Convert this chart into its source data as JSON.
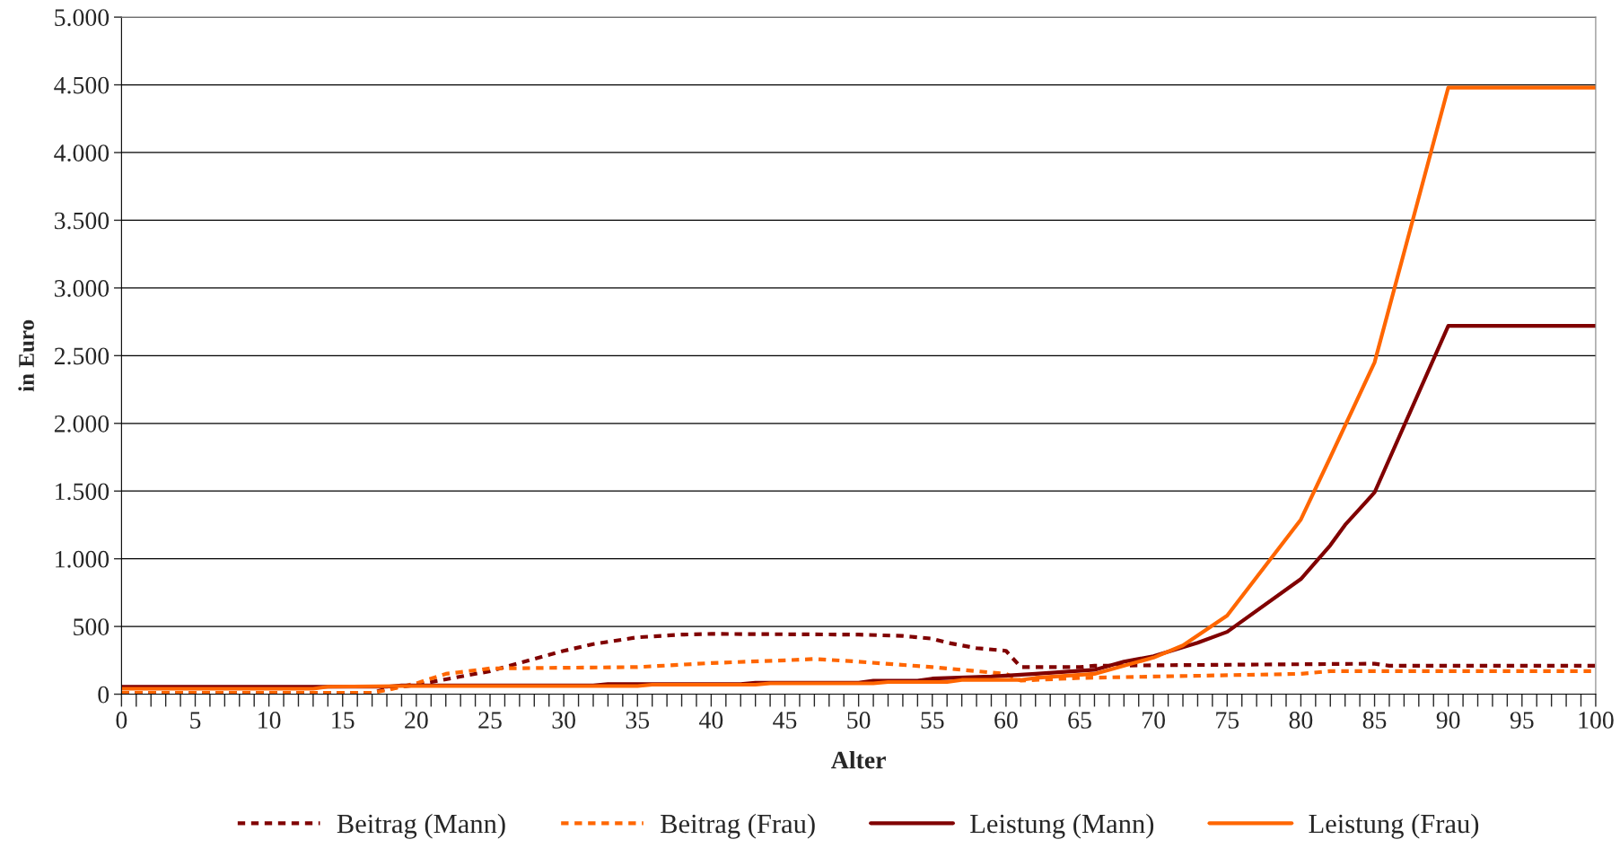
{
  "chart_data": {
    "type": "line",
    "xlabel": "Alter",
    "ylabel": "in Euro",
    "xlim": [
      0,
      100
    ],
    "ylim": [
      0,
      5000
    ],
    "xticks": [
      0,
      {
        "value": 1,
        "label": null
      },
      {
        "value": 2,
        "label": null
      },
      {
        "value": 3,
        "label": null
      },
      {
        "value": 4,
        "label": null
      },
      5,
      {
        "value": 6,
        "label": null
      },
      {
        "value": 7,
        "label": null
      },
      {
        "value": 8,
        "label": null
      },
      {
        "value": 9,
        "label": null
      },
      10,
      {
        "value": 11,
        "label": null
      },
      {
        "value": 12,
        "label": null
      },
      {
        "value": 13,
        "label": null
      },
      {
        "value": 14,
        "label": null
      },
      15,
      {
        "value": 16,
        "label": null
      },
      {
        "value": 17,
        "label": null
      },
      {
        "value": 18,
        "label": null
      },
      {
        "value": 19,
        "label": null
      },
      20,
      {
        "value": 21,
        "label": null
      },
      {
        "value": 22,
        "label": null
      },
      {
        "value": 23,
        "label": null
      },
      {
        "value": 24,
        "label": null
      },
      25,
      {
        "value": 26,
        "label": null
      },
      {
        "value": 27,
        "label": null
      },
      {
        "value": 28,
        "label": null
      },
      {
        "value": 29,
        "label": null
      },
      30,
      {
        "value": 31,
        "label": null
      },
      {
        "value": 32,
        "label": null
      },
      {
        "value": 33,
        "label": null
      },
      {
        "value": 34,
        "label": null
      },
      35,
      {
        "value": 36,
        "label": null
      },
      {
        "value": 37,
        "label": null
      },
      {
        "value": 38,
        "label": null
      },
      {
        "value": 39,
        "label": null
      },
      40,
      {
        "value": 41,
        "label": null
      },
      {
        "value": 42,
        "label": null
      },
      {
        "value": 43,
        "label": null
      },
      {
        "value": 44,
        "label": null
      },
      45,
      {
        "value": 46,
        "label": null
      },
      {
        "value": 47,
        "label": null
      },
      {
        "value": 48,
        "label": null
      },
      {
        "value": 49,
        "label": null
      },
      50,
      {
        "value": 51,
        "label": null
      },
      {
        "value": 52,
        "label": null
      },
      {
        "value": 53,
        "label": null
      },
      {
        "value": 54,
        "label": null
      },
      55,
      {
        "value": 56,
        "label": null
      },
      {
        "value": 57,
        "label": null
      },
      {
        "value": 58,
        "label": null
      },
      {
        "value": 59,
        "label": null
      },
      60,
      {
        "value": 61,
        "label": null
      },
      {
        "value": 62,
        "label": null
      },
      {
        "value": 63,
        "label": null
      },
      {
        "value": 64,
        "label": null
      },
      65,
      {
        "value": 66,
        "label": null
      },
      {
        "value": 67,
        "label": null
      },
      {
        "value": 68,
        "label": null
      },
      {
        "value": 69,
        "label": null
      },
      70,
      {
        "value": 71,
        "label": null
      },
      {
        "value": 72,
        "label": null
      },
      {
        "value": 73,
        "label": null
      },
      {
        "value": 74,
        "label": null
      },
      75,
      {
        "value": 76,
        "label": null
      },
      {
        "value": 77,
        "label": null
      },
      {
        "value": 78,
        "label": null
      },
      {
        "value": 79,
        "label": null
      },
      80,
      {
        "value": 81,
        "label": null
      },
      {
        "value": 82,
        "label": null
      },
      {
        "value": 83,
        "label": null
      },
      {
        "value": 84,
        "label": null
      },
      85,
      {
        "value": 86,
        "label": null
      },
      {
        "value": 87,
        "label": null
      },
      {
        "value": 88,
        "label": null
      },
      {
        "value": 89,
        "label": null
      },
      90,
      {
        "value": 91,
        "label": null
      },
      {
        "value": 92,
        "label": null
      },
      {
        "value": 93,
        "label": null
      },
      {
        "value": 94,
        "label": null
      },
      95,
      {
        "value": 96,
        "label": null
      },
      {
        "value": 97,
        "label": null
      },
      {
        "value": 98,
        "label": null
      },
      {
        "value": 99,
        "label": null
      },
      100
    ],
    "yticks": [
      0,
      500,
      {
        "value": 1000,
        "label": "1.000"
      },
      {
        "value": 1500,
        "label": "1.500"
      },
      {
        "value": 2000,
        "label": "2.000"
      },
      {
        "value": 2500,
        "label": "2.500"
      },
      {
        "value": 3000,
        "label": "3.000"
      },
      {
        "value": 3500,
        "label": "3.500"
      },
      {
        "value": 4000,
        "label": "4.000"
      },
      {
        "value": 4500,
        "label": "4.500"
      },
      {
        "value": 5000,
        "label": "5.000"
      }
    ],
    "grid": "y",
    "legend": "bottom",
    "marker": "none",
    "series": [
      {
        "name": "Beitrag (Mann)",
        "color": "#800000",
        "line_style": "dashed",
        "x": [
          0,
          17,
          18,
          20,
          22,
          25,
          28,
          30,
          32,
          35,
          38,
          40,
          50,
          53,
          55,
          56,
          58,
          60,
          61,
          65,
          66,
          85,
          86,
          100
        ],
        "values": [
          10,
          10,
          40,
          70,
          110,
          170,
          260,
          320,
          370,
          420,
          440,
          445,
          440,
          430,
          410,
          380,
          340,
          320,
          200,
          200,
          210,
          225,
          210,
          210
        ]
      },
      {
        "name": "Beitrag (Frau)",
        "color": "#ff6600",
        "line_style": "dashed",
        "x": [
          0,
          17,
          18,
          20,
          22,
          25,
          30,
          35,
          40,
          45,
          47,
          50,
          55,
          60,
          61,
          65,
          70,
          80,
          82,
          100
        ],
        "values": [
          10,
          10,
          30,
          80,
          150,
          190,
          195,
          200,
          230,
          250,
          260,
          240,
          200,
          150,
          100,
          120,
          130,
          150,
          170,
          170
        ]
      },
      {
        "name": "Leistung (Mann)",
        "color": "#800000",
        "line_style": "solid",
        "x": [
          0,
          18,
          19,
          32,
          33,
          42,
          43,
          50,
          51,
          54,
          55,
          59,
          62,
          66,
          68,
          70,
          73,
          75,
          80,
          82,
          83,
          84,
          85,
          90,
          100
        ],
        "values": [
          55,
          55,
          65,
          65,
          75,
          75,
          85,
          85,
          100,
          100,
          115,
          130,
          150,
          180,
          240,
          280,
          380,
          460,
          850,
          1100,
          1250,
          1370,
          1490,
          2720,
          2720
        ]
      },
      {
        "name": "Leistung (Frau)",
        "color": "#ff6600",
        "line_style": "solid",
        "x": [
          0,
          13,
          14,
          19,
          35,
          36,
          43,
          44,
          51,
          52,
          56,
          57,
          61,
          62,
          66,
          70,
          72,
          75,
          80,
          82,
          85,
          90,
          100
        ],
        "values": [
          40,
          40,
          55,
          60,
          60,
          70,
          70,
          80,
          80,
          90,
          90,
          105,
          105,
          120,
          150,
          270,
          360,
          580,
          1290,
          1750,
          2450,
          4480,
          4480
        ]
      }
    ]
  }
}
